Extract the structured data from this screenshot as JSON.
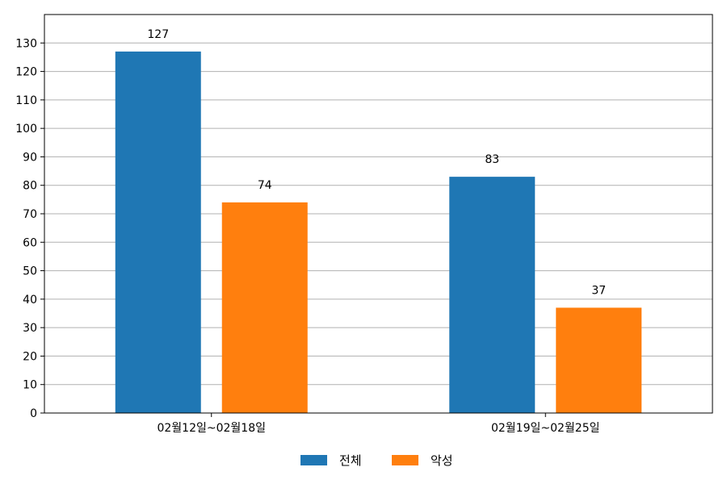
{
  "chart_data": {
    "type": "bar",
    "categories": [
      "02월12일~02월18일",
      "02월19일~02월25일"
    ],
    "series": [
      {
        "name": "전체",
        "values": [
          127,
          83
        ],
        "color": "#1f77b4"
      },
      {
        "name": "악성",
        "values": [
          74,
          37
        ],
        "color": "#ff7f0e"
      }
    ],
    "ylim": [
      0,
      140
    ],
    "yticks": [
      0,
      10,
      20,
      30,
      40,
      50,
      60,
      70,
      80,
      90,
      100,
      110,
      120,
      130
    ],
    "grid": "horizontal",
    "legend_position": "bottom-center",
    "data_labels": true,
    "title": "",
    "xlabel": "",
    "ylabel": ""
  }
}
